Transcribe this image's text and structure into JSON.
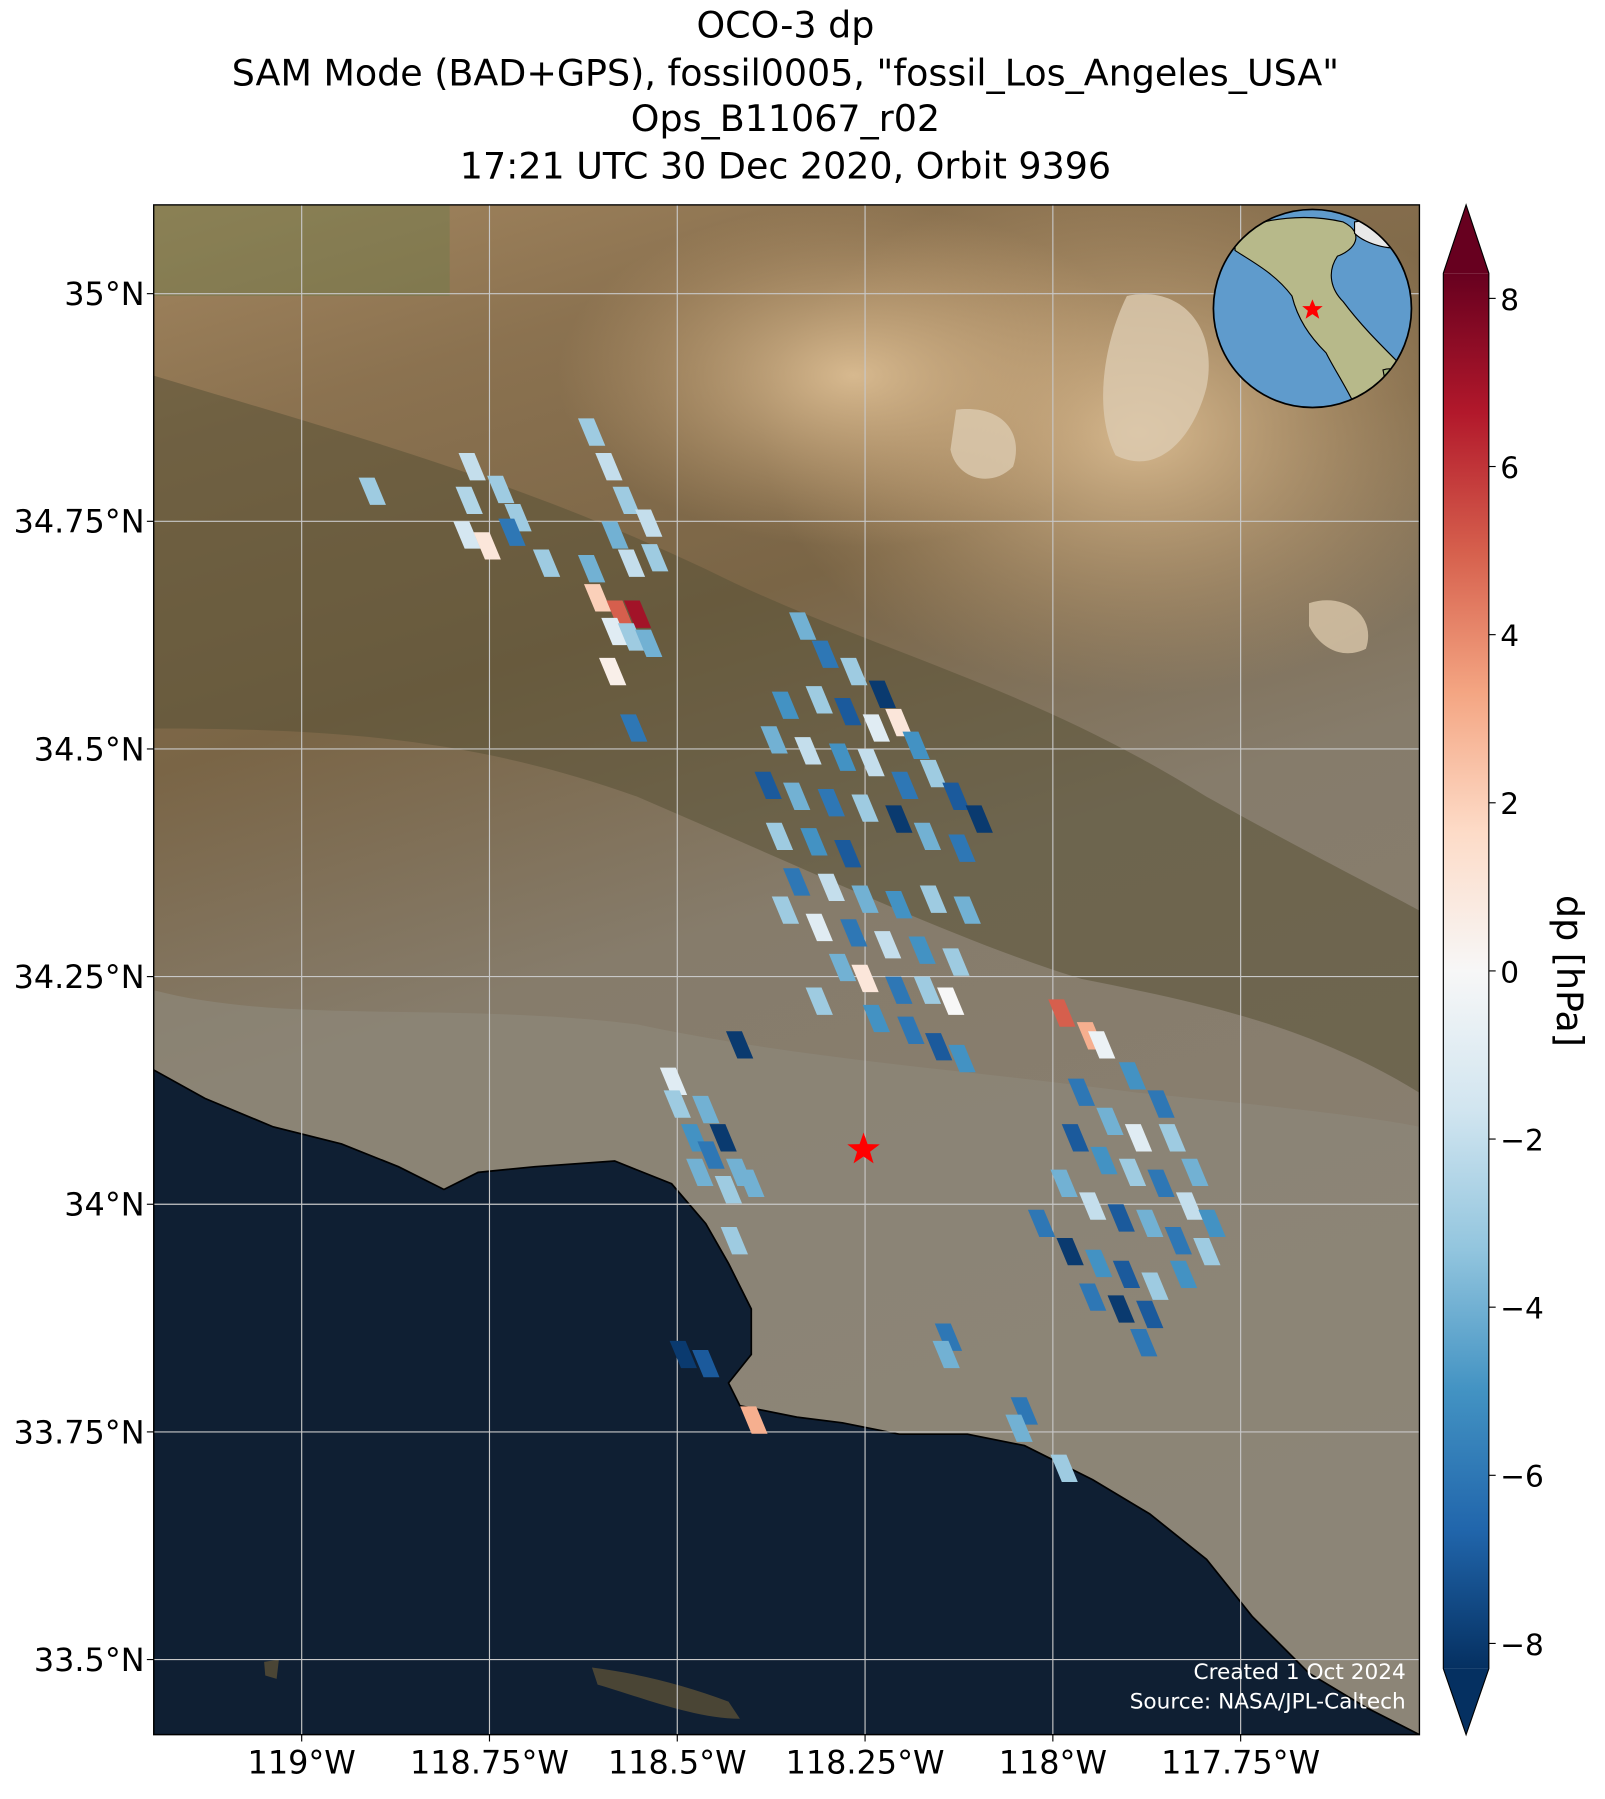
{
  "map": {
    "type": "map",
    "title": [
      "OCO-3 dp",
      "SAM Mode (BAD+GPS), fossil0005, \"fossil_Los_Angeles_USA\"",
      "Ops_B11067_r02",
      "17:21 UTC 30 Dec 2020, Orbit 9396"
    ],
    "lonlim": [
      -119.197,
      -117.512
    ],
    "latlim": [
      33.4175,
      35.0975
    ],
    "lon_ticks": [
      {
        "value": -119,
        "label": "119°W"
      },
      {
        "value": -118.75,
        "label": "118.75°W"
      },
      {
        "value": -118.5,
        "label": "118.5°W"
      },
      {
        "value": -118.25,
        "label": "118.25°W"
      },
      {
        "value": -118,
        "label": "118°W"
      },
      {
        "value": -117.75,
        "label": "117.75°W"
      }
    ],
    "lat_ticks": [
      {
        "value": 33.5,
        "label": "33.5°N"
      },
      {
        "value": 33.75,
        "label": "33.75°N"
      },
      {
        "value": 34,
        "label": "34°N"
      },
      {
        "value": 34.25,
        "label": "34.25°N"
      },
      {
        "value": 34.5,
        "label": "34.5°N"
      },
      {
        "value": 34.75,
        "label": "34.75°N"
      },
      {
        "value": 35,
        "label": "35°N"
      }
    ],
    "grid": true,
    "colorbar": {
      "label": "dp [hPa]",
      "colormap": "RdBu_r",
      "extend": "both",
      "clim": [
        -8.3,
        8.3
      ],
      "ticks": [
        {
          "value": -8,
          "label": "−8"
        },
        {
          "value": -6,
          "label": "−6"
        },
        {
          "value": -4,
          "label": "−4"
        },
        {
          "value": -2,
          "label": "−2"
        },
        0,
        2,
        4,
        6,
        8
      ]
    },
    "target": {
      "lon": -118.252,
      "lat": 34.06,
      "color": "#ff0000"
    },
    "credits": [
      "Created 1 Oct 2024",
      "Source: NASA/JPL-Caltech"
    ],
    "soundings": [
      [
        -118.906,
        34.783,
        -3
      ],
      [
        -118.773,
        34.81,
        -2
      ],
      [
        -118.777,
        34.773,
        -2.5
      ],
      [
        -118.78,
        34.735,
        -1.5
      ],
      [
        -118.753,
        34.723,
        1
      ],
      [
        -118.735,
        34.785,
        -3
      ],
      [
        -118.712,
        34.754,
        -3
      ],
      [
        -118.72,
        34.738,
        -6
      ],
      [
        -118.674,
        34.704,
        -3
      ],
      [
        -118.614,
        34.848,
        -3
      ],
      [
        -118.591,
        34.81,
        -2
      ],
      [
        -118.568,
        34.773,
        -3
      ],
      [
        -118.538,
        34.748,
        -2
      ],
      [
        -118.583,
        34.735,
        -4
      ],
      [
        -118.561,
        34.704,
        -2
      ],
      [
        -118.53,
        34.71,
        -3
      ],
      [
        -118.614,
        34.698,
        -4
      ],
      [
        -118.606,
        34.666,
        2
      ],
      [
        -118.576,
        34.648,
        5
      ],
      [
        -118.553,
        34.648,
        7
      ],
      [
        -118.583,
        34.629,
        -1
      ],
      [
        -118.561,
        34.623,
        -3
      ],
      [
        -118.538,
        34.616,
        -4
      ],
      [
        -118.586,
        34.585,
        0.5
      ],
      [
        -118.558,
        34.523,
        -6
      ],
      [
        -118.333,
        34.635,
        -4
      ],
      [
        -118.303,
        34.604,
        -6
      ],
      [
        -118.265,
        34.585,
        -3
      ],
      [
        -118.227,
        34.56,
        -8
      ],
      [
        -118.356,
        34.548,
        -5
      ],
      [
        -118.311,
        34.554,
        -3
      ],
      [
        -118.273,
        34.541,
        -7
      ],
      [
        -118.235,
        34.523,
        -1
      ],
      [
        -118.205,
        34.529,
        1
      ],
      [
        -118.182,
        34.504,
        -5
      ],
      [
        -118.371,
        34.51,
        -4
      ],
      [
        -118.326,
        34.498,
        -2
      ],
      [
        -118.28,
        34.491,
        -5
      ],
      [
        -118.242,
        34.485,
        -2
      ],
      [
        -118.197,
        34.46,
        -6
      ],
      [
        -118.159,
        34.473,
        -3
      ],
      [
        -118.129,
        34.448,
        -7
      ],
      [
        -118.098,
        34.423,
        -8
      ],
      [
        -118.379,
        34.46,
        -7
      ],
      [
        -118.341,
        34.448,
        -4
      ],
      [
        -118.295,
        34.441,
        -6
      ],
      [
        -118.25,
        34.435,
        -3
      ],
      [
        -118.205,
        34.423,
        -8
      ],
      [
        -118.167,
        34.404,
        -4
      ],
      [
        -118.121,
        34.391,
        -6
      ],
      [
        -118.364,
        34.404,
        -3
      ],
      [
        -118.318,
        34.398,
        -5
      ],
      [
        -118.273,
        34.385,
        -7
      ],
      [
        -118.341,
        34.354,
        -6
      ],
      [
        -118.295,
        34.348,
        -2
      ],
      [
        -118.25,
        34.335,
        -4
      ],
      [
        -118.205,
        34.329,
        -5
      ],
      [
        -118.159,
        34.335,
        -3
      ],
      [
        -118.114,
        34.323,
        -4
      ],
      [
        -118.356,
        34.323,
        -3
      ],
      [
        -118.311,
        34.304,
        -1
      ],
      [
        -118.265,
        34.298,
        -6
      ],
      [
        -118.22,
        34.285,
        -2
      ],
      [
        -118.174,
        34.279,
        -5
      ],
      [
        -118.129,
        34.266,
        -3
      ],
      [
        -118.28,
        34.26,
        -4
      ],
      [
        -118.25,
        34.248,
        1
      ],
      [
        -118.205,
        34.235,
        -6
      ],
      [
        -118.167,
        34.235,
        -3
      ],
      [
        -118.136,
        34.223,
        0
      ],
      [
        -118.311,
        34.223,
        -3
      ],
      [
        -118.235,
        34.204,
        -5
      ],
      [
        -118.189,
        34.191,
        -6
      ],
      [
        -118.152,
        34.173,
        -7
      ],
      [
        -118.121,
        34.16,
        -5
      ],
      [
        -118.417,
        34.175,
        -8
      ],
      [
        -117.988,
        34.21,
        5
      ],
      [
        -117.95,
        34.185,
        3
      ],
      [
        -117.935,
        34.175,
        -0.5
      ],
      [
        -117.894,
        34.141,
        -5
      ],
      [
        -117.856,
        34.11,
        -6
      ],
      [
        -117.962,
        34.123,
        -6
      ],
      [
        -117.924,
        34.091,
        -4
      ],
      [
        -117.886,
        34.073,
        -1
      ],
      [
        -117.841,
        34.073,
        -3
      ],
      [
        -117.811,
        34.035,
        -4
      ],
      [
        -117.97,
        34.073,
        -7
      ],
      [
        -117.932,
        34.048,
        -5
      ],
      [
        -117.894,
        34.035,
        -3
      ],
      [
        -117.856,
        34.023,
        -6
      ],
      [
        -117.818,
        33.998,
        -2
      ],
      [
        -117.788,
        33.979,
        -5
      ],
      [
        -117.985,
        34.023,
        -4
      ],
      [
        -117.947,
        33.998,
        -2
      ],
      [
        -117.909,
        33.985,
        -7
      ],
      [
        -117.871,
        33.979,
        -4
      ],
      [
        -117.833,
        33.96,
        -6
      ],
      [
        -117.795,
        33.948,
        -3
      ],
      [
        -117.977,
        33.948,
        -8
      ],
      [
        -117.939,
        33.935,
        -5
      ],
      [
        -117.902,
        33.923,
        -7
      ],
      [
        -117.864,
        33.91,
        -3
      ],
      [
        -117.826,
        33.923,
        -5
      ],
      [
        -117.947,
        33.898,
        -6
      ],
      [
        -117.909,
        33.885,
        -8
      ],
      [
        -117.871,
        33.879,
        -7
      ],
      [
        -117.879,
        33.848,
        -6
      ],
      [
        -118.015,
        33.979,
        -6
      ],
      [
        -118.505,
        34.135,
        -1
      ],
      [
        -118.5,
        34.11,
        -3
      ],
      [
        -118.462,
        34.104,
        -4
      ],
      [
        -118.439,
        34.073,
        -8
      ],
      [
        -118.477,
        34.073,
        -5
      ],
      [
        -118.455,
        34.054,
        -6
      ],
      [
        -118.417,
        34.035,
        -4
      ],
      [
        -118.47,
        34.035,
        -4
      ],
      [
        -118.432,
        34.016,
        -3
      ],
      [
        -118.402,
        34.023,
        -4
      ],
      [
        -118.424,
        33.96,
        -3
      ],
      [
        -118.492,
        33.835,
        -8
      ],
      [
        -118.462,
        33.825,
        -7
      ],
      [
        -118.398,
        33.763,
        3
      ],
      [
        -118.139,
        33.854,
        -6
      ],
      [
        -118.142,
        33.835,
        -4
      ],
      [
        -118.038,
        33.773,
        -6
      ],
      [
        -118.045,
        33.754,
        -4
      ],
      [
        -117.985,
        33.71,
        -3
      ]
    ]
  }
}
